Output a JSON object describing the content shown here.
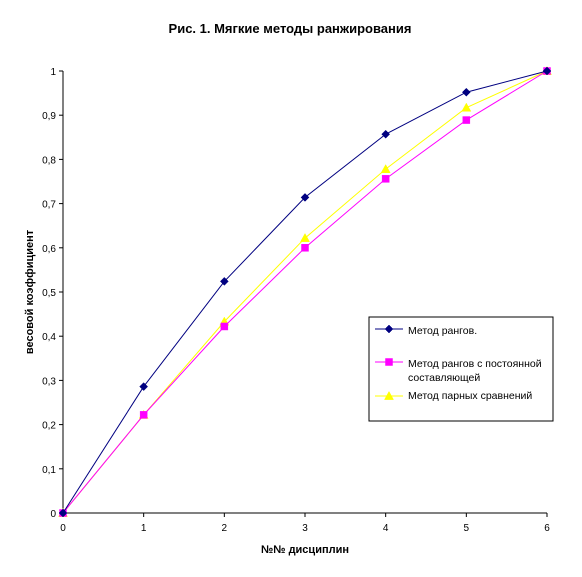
{
  "chart_data": {
    "type": "line",
    "title": "Рис. 1. Мягкие методы ранжирования",
    "xlabel": "№№ дисциплин",
    "ylabel": "весовой коэффициент",
    "x": [
      0,
      1,
      2,
      3,
      4,
      5,
      6
    ],
    "x_ticks": [
      "0",
      "1",
      "2",
      "3",
      "4",
      "5",
      "6"
    ],
    "y_ticks": [
      "0",
      "0,1",
      "0,2",
      "0,3",
      "0,4",
      "0,5",
      "0,6",
      "0,7",
      "0,8",
      "0,9",
      "1"
    ],
    "xlim": [
      0,
      6
    ],
    "ylim": [
      0,
      1
    ],
    "grid": false,
    "legend_position": "right",
    "series": [
      {
        "name": "Метод рангов.",
        "values": [
          0,
          0.286,
          0.524,
          0.714,
          0.857,
          0.952,
          1.0
        ],
        "color": "#000080",
        "marker": "diamond"
      },
      {
        "name": "Метод рангов с постоянной составляющей",
        "values": [
          0,
          0.222,
          0.422,
          0.6,
          0.756,
          0.889,
          1.0
        ],
        "color": "#ff00ff",
        "marker": "square"
      },
      {
        "name": "Метод парных сравнений",
        "values": [
          0,
          0.222,
          0.433,
          0.622,
          0.778,
          0.917,
          1.0
        ],
        "color": "#ffff00",
        "marker": "triangle"
      }
    ]
  }
}
